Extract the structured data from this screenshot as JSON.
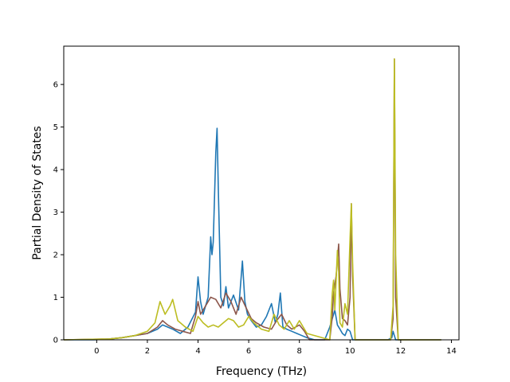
{
  "chart_data": {
    "type": "line",
    "title": "",
    "xlabel": "Frequency (THz)",
    "ylabel": "Partial Density of States",
    "xlim": [
      -1.3,
      14.3
    ],
    "ylim": [
      0,
      6.9
    ],
    "xticks": [
      0,
      2,
      4,
      6,
      8,
      10,
      12,
      14
    ],
    "yticks": [
      0,
      1,
      2,
      3,
      4,
      5,
      6
    ],
    "grid": false,
    "legend": "none",
    "series": [
      {
        "color": "#1f77b4",
        "x": [
          -1.3,
          -0.1,
          0.5,
          1.0,
          1.5,
          2.0,
          2.4,
          2.6,
          3.0,
          3.3,
          3.6,
          3.9,
          4.0,
          4.1,
          4.2,
          4.4,
          4.5,
          4.55,
          4.6,
          4.7,
          4.75,
          4.8,
          4.9,
          5.0,
          5.1,
          5.2,
          5.4,
          5.6,
          5.75,
          5.85,
          5.95,
          6.1,
          6.3,
          6.5,
          6.7,
          6.9,
          7.05,
          7.15,
          7.25,
          7.35,
          7.5,
          7.7,
          7.9,
          8.1,
          8.3,
          8.6,
          9.0,
          9.2,
          9.3,
          9.4,
          9.5,
          9.6,
          9.7,
          9.8,
          9.9,
          10.0,
          10.05,
          10.1,
          10.2,
          11.5,
          11.65,
          11.7,
          11.75,
          11.8,
          11.9,
          13.6
        ],
        "y": [
          0,
          0,
          0.02,
          0.05,
          0.1,
          0.15,
          0.25,
          0.35,
          0.25,
          0.15,
          0.3,
          0.65,
          1.48,
          0.9,
          0.6,
          1.0,
          2.42,
          2.0,
          2.3,
          4.4,
          4.97,
          3.6,
          1.0,
          0.8,
          1.25,
          0.75,
          1.05,
          0.7,
          1.85,
          0.9,
          0.6,
          0.45,
          0.3,
          0.35,
          0.55,
          0.85,
          0.4,
          0.6,
          1.1,
          0.3,
          0.25,
          0.2,
          0.15,
          0.1,
          0.05,
          0,
          0,
          0.3,
          0.5,
          0.7,
          0.35,
          0.25,
          0.15,
          0.1,
          0.25,
          0.2,
          0.1,
          0,
          0,
          0,
          0.05,
          0.2,
          0.1,
          0,
          0,
          0
        ]
      },
      {
        "color": "#8c564b",
        "x": [
          -1.3,
          0.5,
          1.0,
          1.5,
          2.0,
          2.4,
          2.6,
          2.8,
          3.1,
          3.4,
          3.7,
          3.9,
          4.0,
          4.1,
          4.3,
          4.5,
          4.7,
          4.9,
          5.1,
          5.3,
          5.5,
          5.7,
          5.9,
          6.1,
          6.3,
          6.6,
          6.9,
          7.1,
          7.3,
          7.5,
          7.7,
          8.0,
          8.2,
          8.4,
          9.2,
          9.3,
          9.35,
          9.45,
          9.55,
          9.6,
          9.7,
          9.8,
          9.9,
          10.0,
          10.05,
          10.1,
          10.2,
          11.6,
          11.7,
          11.75,
          11.8,
          11.9,
          13.6
        ],
        "y": [
          0,
          0.02,
          0.05,
          0.1,
          0.15,
          0.3,
          0.45,
          0.35,
          0.25,
          0.2,
          0.15,
          0.55,
          0.9,
          0.6,
          0.8,
          1.0,
          0.95,
          0.75,
          1.1,
          0.9,
          0.6,
          1.0,
          0.75,
          0.5,
          0.4,
          0.3,
          0.25,
          0.45,
          0.6,
          0.35,
          0.25,
          0.35,
          0.2,
          0,
          0,
          0.55,
          1.1,
          1.5,
          2.25,
          1.2,
          0.5,
          0.45,
          0.35,
          1.0,
          3.2,
          1.5,
          0,
          0,
          0.5,
          6.6,
          1.0,
          0,
          0
        ]
      },
      {
        "color": "#bcbd22",
        "x": [
          -1.3,
          0.5,
          1.0,
          1.5,
          2.0,
          2.3,
          2.5,
          2.7,
          2.9,
          3.0,
          3.2,
          3.5,
          3.8,
          4.0,
          4.2,
          4.4,
          4.6,
          4.8,
          5.0,
          5.2,
          5.4,
          5.6,
          5.8,
          6.0,
          6.2,
          6.5,
          6.8,
          7.0,
          7.2,
          7.4,
          7.6,
          7.8,
          8.0,
          8.1,
          8.3,
          9.2,
          9.3,
          9.35,
          9.4,
          9.5,
          9.55,
          9.6,
          9.7,
          9.8,
          9.9,
          10.0,
          10.05,
          10.1,
          10.2,
          11.6,
          11.7,
          11.75,
          11.8,
          11.9,
          13.6
        ],
        "y": [
          0,
          0.02,
          0.05,
          0.1,
          0.2,
          0.4,
          0.9,
          0.6,
          0.8,
          0.95,
          0.45,
          0.3,
          0.2,
          0.55,
          0.4,
          0.3,
          0.35,
          0.3,
          0.4,
          0.5,
          0.45,
          0.3,
          0.35,
          0.55,
          0.4,
          0.25,
          0.2,
          0.6,
          0.35,
          0.25,
          0.45,
          0.25,
          0.45,
          0.35,
          0.15,
          0,
          1.1,
          1.4,
          0.7,
          2.1,
          1.6,
          0.4,
          0.3,
          0.85,
          0.6,
          2.4,
          3.2,
          1.8,
          0,
          0,
          0.8,
          6.6,
          2.0,
          0,
          0
        ]
      }
    ]
  }
}
